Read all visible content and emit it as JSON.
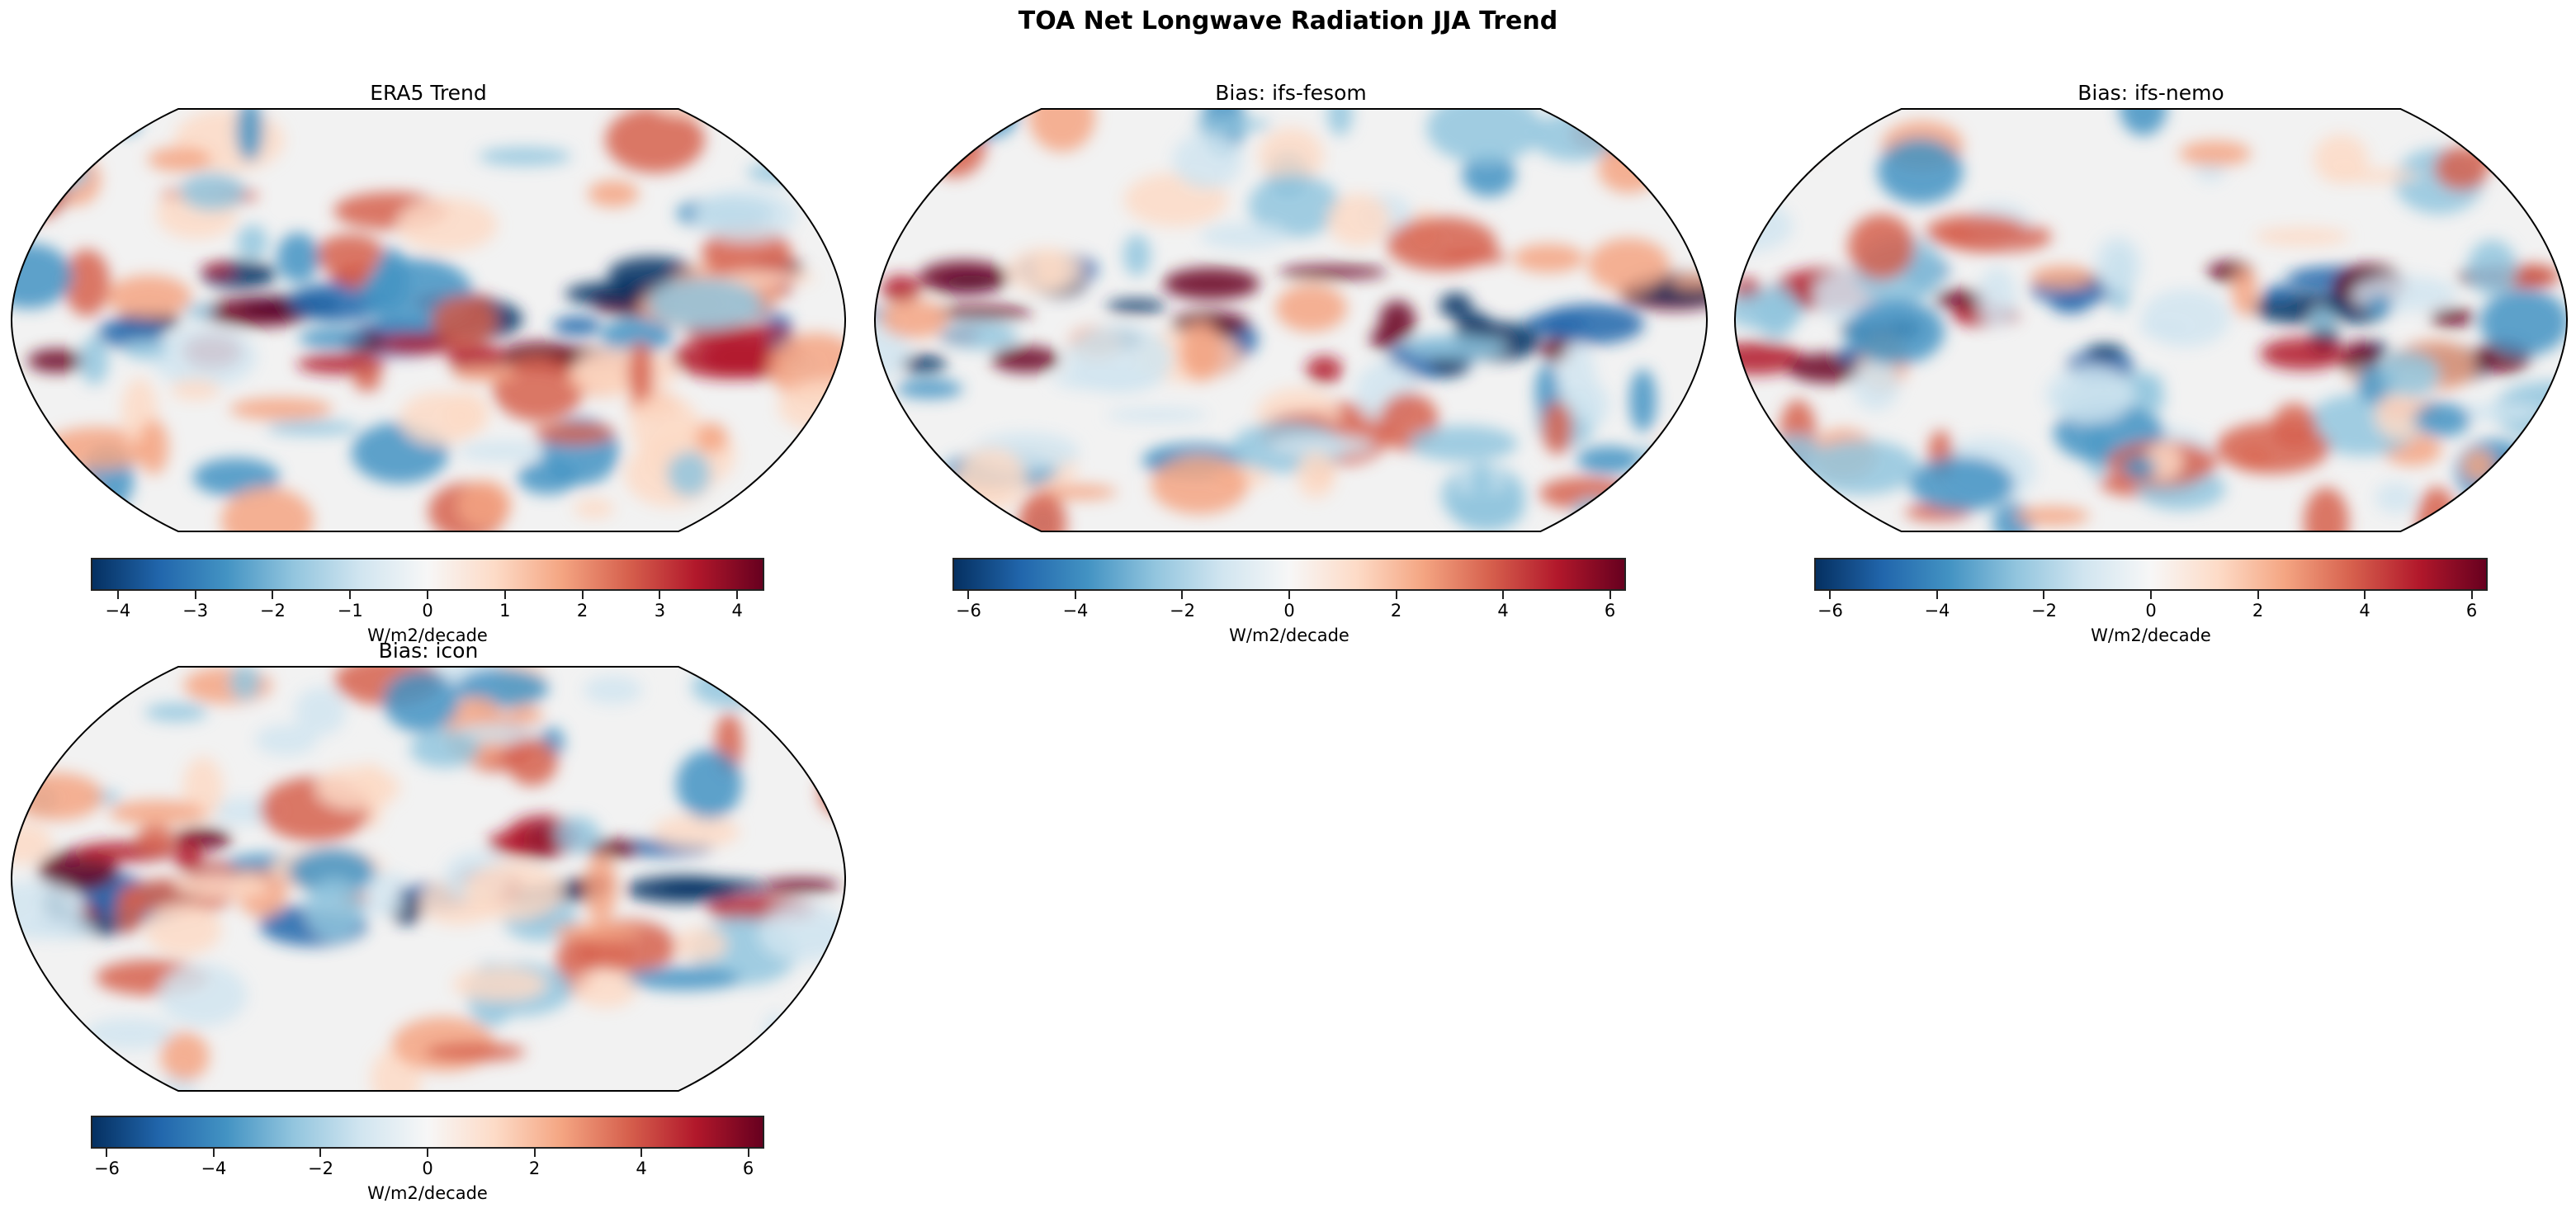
{
  "figure": {
    "title": "TOA Net Longwave Radiation JJA Trend",
    "colormap": [
      "#053061",
      "#2166ac",
      "#4393c3",
      "#92c5de",
      "#d1e5f0",
      "#f7f7f7",
      "#fddbc7",
      "#f4a582",
      "#d6604d",
      "#b2182b",
      "#67001f"
    ],
    "panels": [
      {
        "title": "ERA5 Trend",
        "colorbar": {
          "label": "W/m2/decade",
          "range": [
            -4.35,
            4.35
          ],
          "ticks": [
            "−4",
            "−3",
            "−2",
            "−1",
            "0",
            "1",
            "2",
            "3",
            "4"
          ],
          "tick_values": [
            -4,
            -3,
            -2,
            -1,
            0,
            1,
            2,
            3,
            4
          ]
        }
      },
      {
        "title": "Bias: ifs-fesom",
        "colorbar": {
          "label": "W/m2/decade",
          "range": [
            -6.3,
            6.3
          ],
          "ticks": [
            "−6",
            "−4",
            "−2",
            "0",
            "2",
            "4",
            "6"
          ],
          "tick_values": [
            -6,
            -4,
            -2,
            0,
            2,
            4,
            6
          ]
        }
      },
      {
        "title": "Bias: ifs-nemo",
        "colorbar": {
          "label": "W/m2/decade",
          "range": [
            -6.3,
            6.3
          ],
          "ticks": [
            "−6",
            "−4",
            "−2",
            "0",
            "2",
            "4",
            "6"
          ],
          "tick_values": [
            -6,
            -4,
            -2,
            0,
            2,
            4,
            6
          ]
        }
      },
      {
        "title": "Bias: icon",
        "colorbar": {
          "label": "W/m2/decade",
          "range": [
            -6.3,
            6.3
          ],
          "ticks": [
            "−6",
            "−4",
            "−2",
            "0",
            "2",
            "4",
            "6"
          ],
          "tick_values": [
            -6,
            -4,
            -2,
            0,
            2,
            4,
            6
          ]
        }
      }
    ]
  }
}
